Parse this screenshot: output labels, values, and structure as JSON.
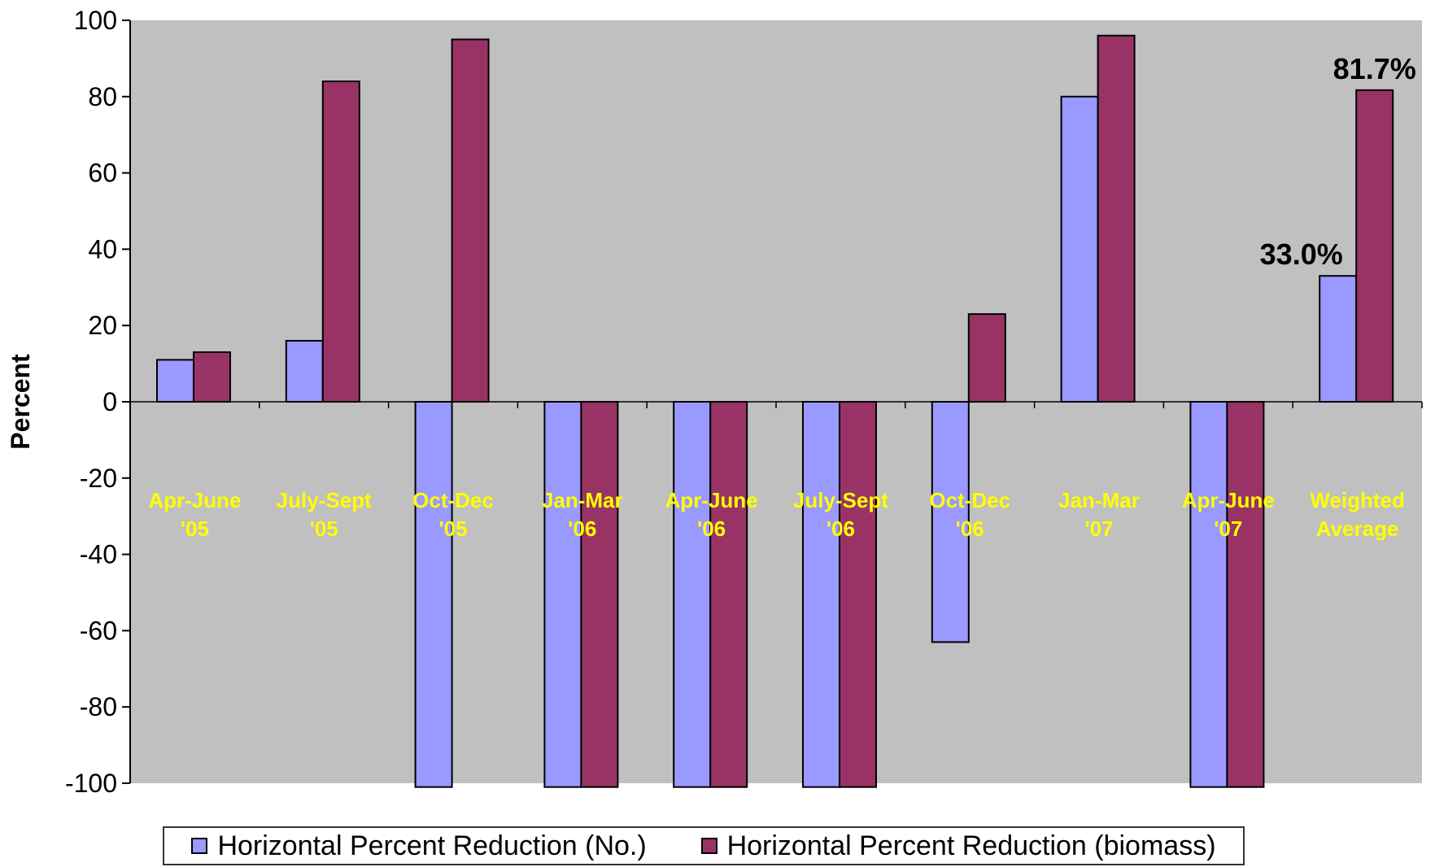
{
  "chart_data": {
    "type": "bar",
    "title": "",
    "xlabel": "",
    "ylabel": "Percent",
    "ylim": [
      -100,
      100
    ],
    "yticks": [
      100,
      80,
      60,
      40,
      20,
      0,
      -20,
      -40,
      -60,
      -80,
      -100
    ],
    "grid": false,
    "legend_position": "bottom",
    "categories": [
      [
        "Apr-June",
        "'05"
      ],
      [
        "July-Sept",
        "'05"
      ],
      [
        "Oct-Dec",
        "'05"
      ],
      [
        "Jan-Mar",
        "'06"
      ],
      [
        "Apr-June",
        "'06"
      ],
      [
        "July-Sept",
        "'06"
      ],
      [
        "Oct-Dec",
        "'06"
      ],
      [
        "Jan-Mar",
        "'07"
      ],
      [
        "Apr-June",
        "'07"
      ],
      [
        "Weighted",
        "Average"
      ]
    ],
    "series": [
      {
        "name": "Horizontal Percent Reduction (No.)",
        "color": "#9999ff",
        "values": [
          11,
          16,
          -101,
          -101,
          -101,
          -101,
          -63,
          80,
          -101,
          33.0
        ]
      },
      {
        "name": "Horizontal Percent Reduction (biomass)",
        "color": "#993366",
        "values": [
          13,
          84,
          95,
          -101,
          -101,
          -101,
          23,
          96,
          -101,
          81.7
        ]
      }
    ],
    "annotations": [
      {
        "text": "33.0%",
        "category_index": 9,
        "series_index": 0
      },
      {
        "text": "81.7%",
        "category_index": 9,
        "series_index": 1
      }
    ],
    "colors": {
      "plot_background": "#c0c0c0",
      "category_label": "#ffff00",
      "axis": "#000000"
    }
  }
}
